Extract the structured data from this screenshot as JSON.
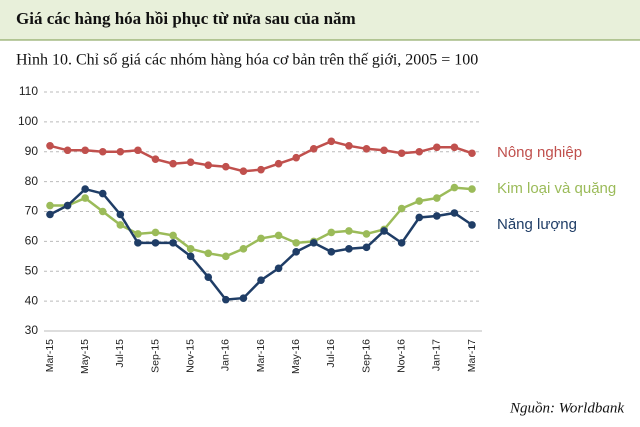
{
  "header": {
    "title": "Giá các hàng hóa hồi phục từ nửa sau của năm"
  },
  "chart_data": {
    "type": "line",
    "title": "Hình 10. Chỉ số giá các nhóm hàng hóa cơ bản trên thế giới, 2005 = 100",
    "categories": [
      "Mar-15",
      null,
      "May-15",
      null,
      "Jul-15",
      null,
      "Sep-15",
      null,
      "Nov-15",
      null,
      "Jan-16",
      null,
      "Mar-16",
      null,
      "May-16",
      null,
      "Jul-16",
      null,
      "Sep-16",
      null,
      "Nov-16",
      null,
      "Jan-17",
      null,
      "Mar-17"
    ],
    "series": [
      {
        "name": "Nông nghiệp",
        "color": "#c0504d",
        "values": [
          92,
          90.5,
          90.5,
          90,
          90,
          90.5,
          87.5,
          86,
          86.5,
          85.5,
          85,
          83.5,
          84,
          86,
          88,
          91,
          93.5,
          92,
          91,
          90.5,
          89.5,
          90,
          91.5,
          91.5,
          89.5
        ]
      },
      {
        "name": "Kim loại và quặng",
        "color": "#9bbb59",
        "values": [
          72,
          72,
          74.5,
          70,
          65.5,
          62.5,
          63,
          62,
          57.5,
          56,
          55,
          57.5,
          61,
          62,
          59.5,
          60,
          63,
          63.5,
          62.5,
          64,
          71,
          73.5,
          74.5,
          78,
          77.5
        ]
      },
      {
        "name": "Năng lượng",
        "color": "#1f3d66",
        "values": [
          69,
          72,
          77.5,
          76,
          69,
          59.5,
          59.5,
          59.5,
          55,
          48,
          40.5,
          41,
          47,
          51,
          56.5,
          59.5,
          56.5,
          57.5,
          58,
          63.5,
          59.5,
          68,
          68.5,
          69.5,
          65.5
        ]
      }
    ],
    "ylim": [
      30,
      110
    ],
    "yticks": [
      30,
      40,
      50,
      60,
      70,
      80,
      90,
      100,
      110
    ],
    "grid": true,
    "source": "Nguồn: Worldbank"
  }
}
